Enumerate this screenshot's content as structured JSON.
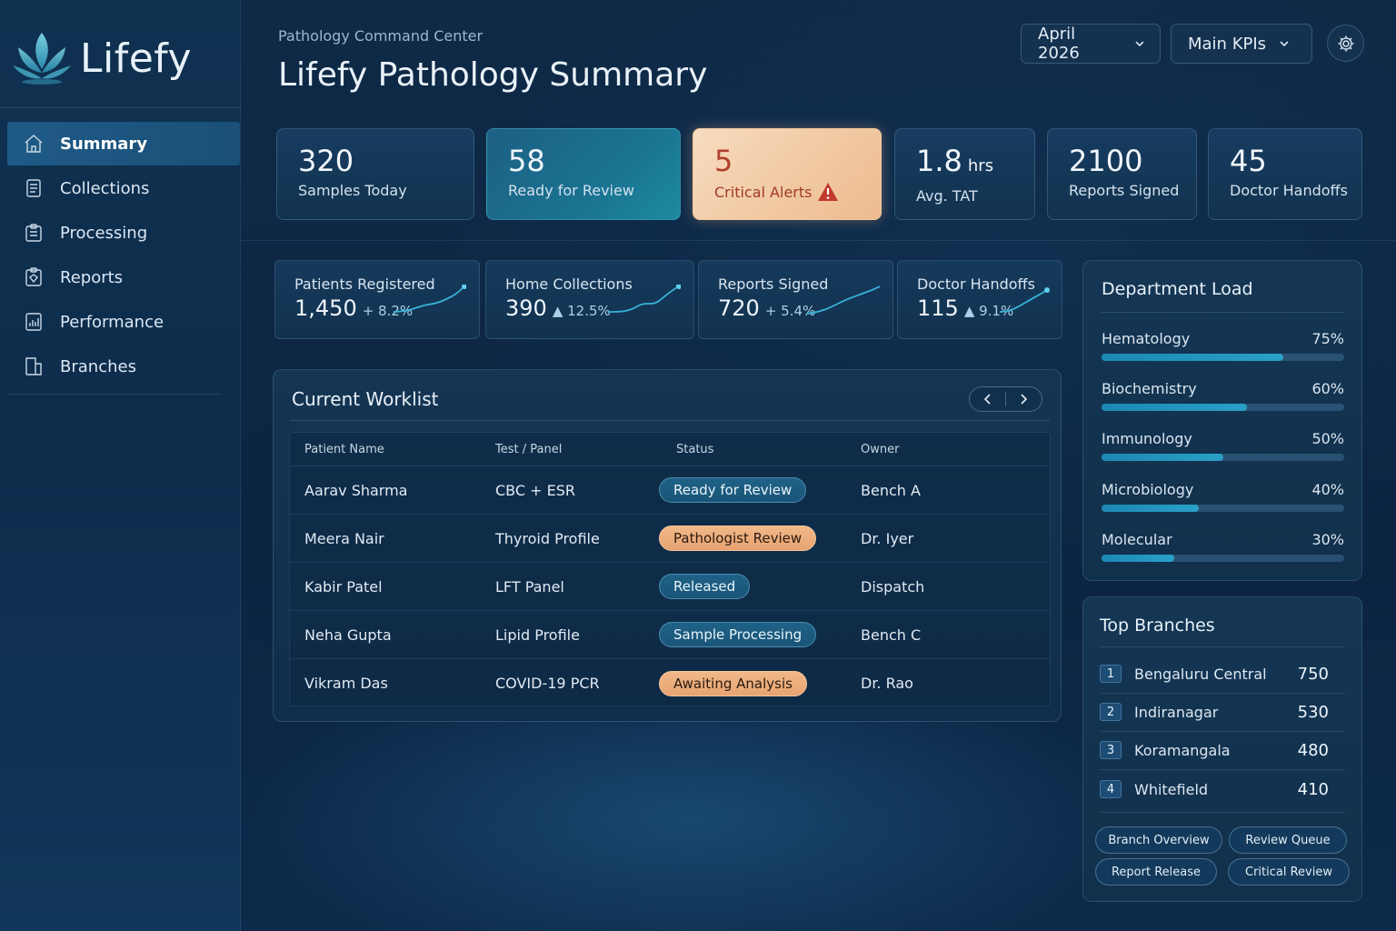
{
  "app": {
    "brand": "Lifefy"
  },
  "sidebar": {
    "items": [
      {
        "label": "Summary",
        "icon": "home-icon",
        "active": true
      },
      {
        "label": "Collections",
        "icon": "document-icon"
      },
      {
        "label": "Processing",
        "icon": "clipboard-icon"
      },
      {
        "label": "Reports",
        "icon": "report-icon"
      },
      {
        "label": "Performance",
        "icon": "bar-chart-icon"
      },
      {
        "label": "Branches",
        "icon": "building-icon"
      }
    ]
  },
  "header": {
    "breadcrumb": "Pathology Command Center",
    "title": "Lifefy Pathology Summary",
    "month_select": "April 2026",
    "kpi_select": "Main KPIs"
  },
  "kpis": [
    {
      "value": "320",
      "unit": "",
      "label": "Samples Today"
    },
    {
      "value": "58",
      "unit": "",
      "label": "Ready for Review"
    },
    {
      "value": "5",
      "unit": "",
      "label": "Critical Alerts"
    },
    {
      "value": "1.8",
      "unit": "hrs",
      "label": "Avg. TAT"
    },
    {
      "value": "2100",
      "unit": "",
      "label": "Reports Signed"
    },
    {
      "value": "45",
      "unit": "",
      "label": "Doctor Handoffs"
    }
  ],
  "mini_stats": [
    {
      "label": "Patients Registered",
      "value": "1,450",
      "change": "+ 8.2%"
    },
    {
      "label": "Home Collections",
      "value": "390",
      "change": "▲ 12.5%"
    },
    {
      "label": "Reports Signed",
      "value": "720",
      "change": "+ 5.4%"
    },
    {
      "label": "Doctor Handoffs",
      "value": "115",
      "change": "▲ 9.1%"
    }
  ],
  "worklist": {
    "title": "Current Worklist",
    "columns": [
      "Patient Name",
      "Test / Panel",
      "Status",
      "Owner"
    ],
    "rows": [
      {
        "patient": "Aarav Sharma",
        "test": "CBC + ESR",
        "status": "Ready for Review",
        "status_color": "blue",
        "owner": "Bench A"
      },
      {
        "patient": "Meera Nair",
        "test": "Thyroid Profile",
        "status": "Pathologist Review",
        "status_color": "orange",
        "owner": "Dr. Iyer"
      },
      {
        "patient": "Kabir Patel",
        "test": "LFT Panel",
        "status": "Released",
        "status_color": "blue",
        "owner": "Dispatch"
      },
      {
        "patient": "Neha Gupta",
        "test": "Lipid Profile",
        "status": "Sample Processing",
        "status_color": "blue",
        "owner": "Bench C"
      },
      {
        "patient": "Vikram Das",
        "test": "COVID-19 PCR",
        "status": "Awaiting Analysis",
        "status_color": "orange",
        "owner": "Dr. Rao"
      }
    ]
  },
  "department_load": {
    "title": "Department Load",
    "items": [
      {
        "name": "Hematology",
        "percent_label": "75%",
        "level": 0.75
      },
      {
        "name": "Biochemistry",
        "percent_label": "60%",
        "level": 0.6
      },
      {
        "name": "Immunology",
        "percent_label": "50%",
        "level": 0.5
      },
      {
        "name": "Microbiology",
        "percent_label": "40%",
        "level": 0.4
      },
      {
        "name": "Molecular",
        "percent_label": "30%",
        "level": 0.3
      }
    ]
  },
  "top_branches": {
    "title": "Top Branches",
    "items": [
      {
        "rank": "1",
        "name": "Bengaluru Central",
        "value": "750"
      },
      {
        "rank": "2",
        "name": "Indiranagar",
        "value": "530"
      },
      {
        "rank": "3",
        "name": "Koramangala",
        "value": "480"
      },
      {
        "rank": "4",
        "name": "Whitefield",
        "value": "410"
      }
    ],
    "actions": [
      "Branch Overview",
      "Review Queue",
      "Report Release",
      "Critical Review"
    ]
  },
  "colors": {
    "accent_teal": "#2aa0c7",
    "alert_orange": "#f1c9a3",
    "alert_text": "#b2402c",
    "pill_blue": "#1f6287",
    "pill_orange": "#e7a371"
  }
}
